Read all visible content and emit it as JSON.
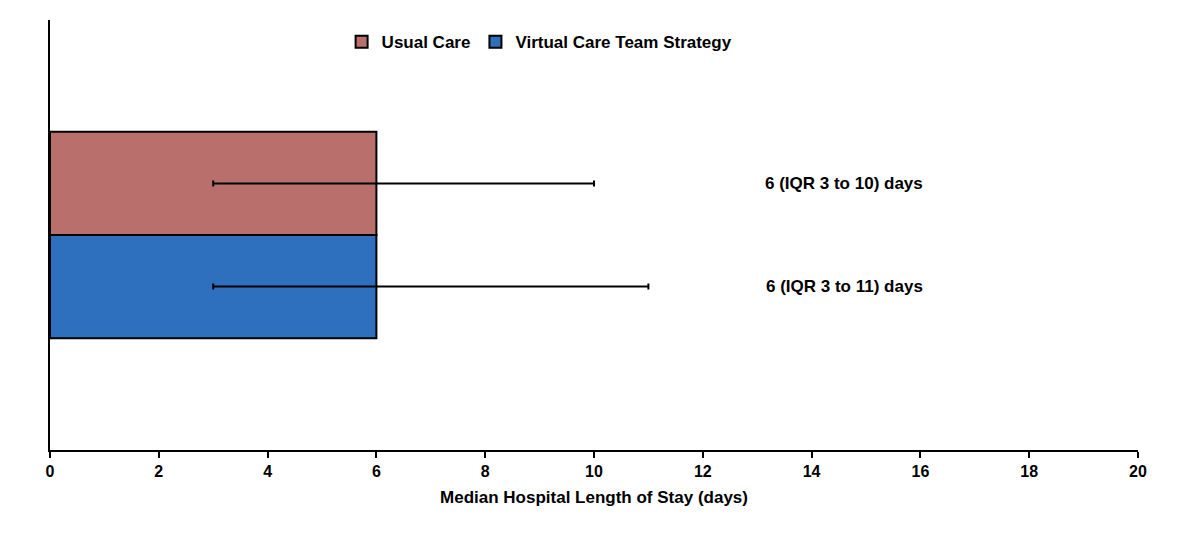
{
  "chart_data": {
    "type": "bar",
    "orientation": "horizontal",
    "categories": [
      null
    ],
    "series": [
      {
        "name": "Usual Care",
        "color": "#b9706c",
        "values": [
          6
        ],
        "iqr_low": [
          3
        ],
        "iqr_high": [
          10
        ],
        "value_labels": [
          "6 (IQR 3 to 10) days"
        ]
      },
      {
        "name": "Virtual Care Team Strategy",
        "color": "#2e6fbe",
        "values": [
          6
        ],
        "iqr_low": [
          3
        ],
        "iqr_high": [
          11
        ],
        "value_labels": [
          "6 (IQR 3 to 11) days"
        ]
      }
    ],
    "x_label": "Median Hospital Length of Stay (days)",
    "xlim": [
      0,
      20
    ],
    "xticks": [
      0,
      2,
      4,
      6,
      8,
      10,
      12,
      14,
      16,
      18,
      20
    ],
    "legend": "top",
    "grid": false,
    "data_labels": true,
    "tick_labels": "x"
  }
}
